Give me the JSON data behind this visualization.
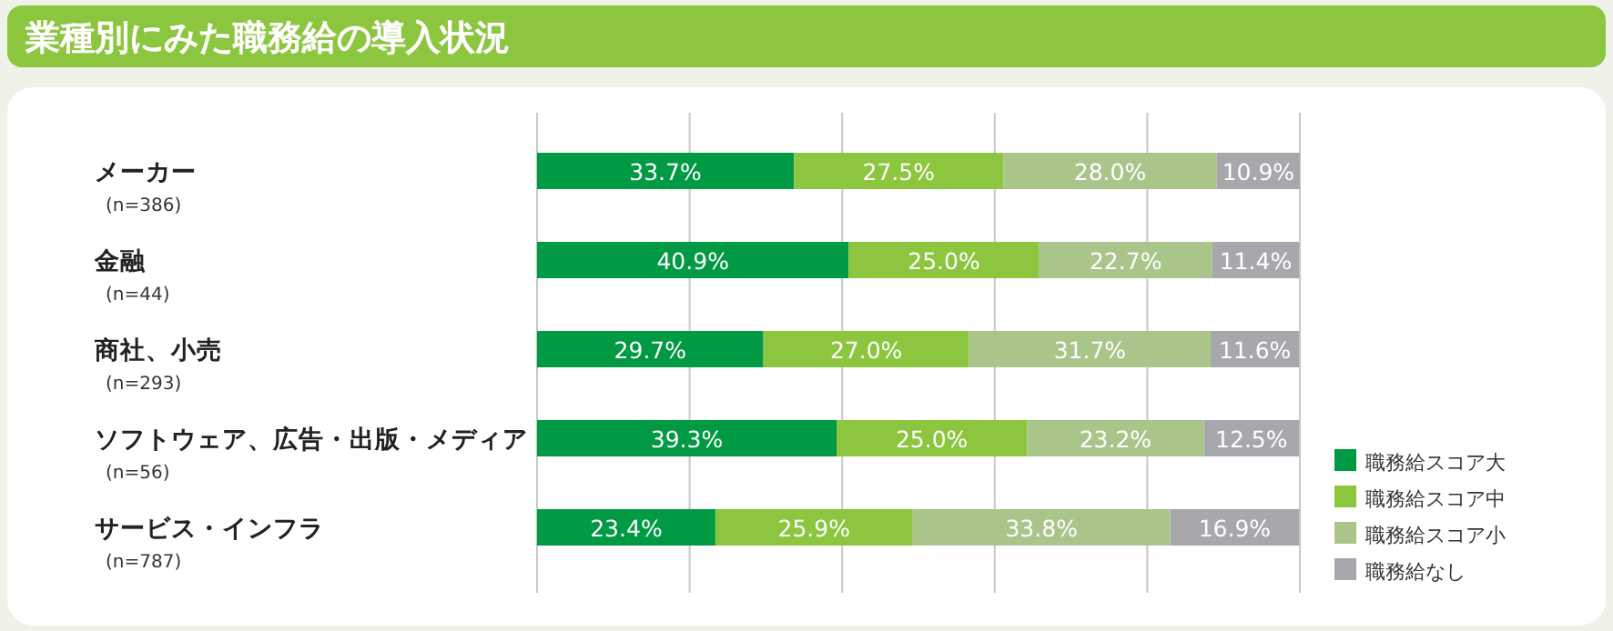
{
  "chart_data": {
    "type": "bar",
    "orientation": "horizontal",
    "stacked": true,
    "title": "業種別にみた職務給の導入状況",
    "categories": [
      "メーカー\n(n=386)",
      "金融\n(n=44)",
      "商社、小売\n(n=293)",
      "ソフトウェア、広告・出版・メディア\n(n=56)",
      "サービス・インフラ\n(n=787)"
    ],
    "series": [
      {
        "name": "職務給スコア大",
        "color": "#009944",
        "values": [
          33.7,
          40.9,
          29.7,
          39.3,
          23.4
        ],
        "value_labels": [
          "33.7%",
          "40.9%",
          "29.7%",
          "39.3%",
          "23.4%"
        ]
      },
      {
        "name": "職務給スコア中",
        "color": "#8cc63f",
        "values": [
          27.5,
          25.0,
          27.0,
          25.0,
          25.9
        ],
        "value_labels": [
          "27.5%",
          "25.0%",
          "27.0%",
          "25.0%",
          "25.9%"
        ]
      },
      {
        "name": "職務給スコア小",
        "color": "#a9c58a",
        "values": [
          28.0,
          22.7,
          31.7,
          23.2,
          33.8
        ],
        "value_labels": [
          "28.0%",
          "22.7%",
          "31.7%",
          "23.2%",
          "33.8%"
        ]
      },
      {
        "name": "職務給なし",
        "color": "#a6a8ab",
        "values": [
          10.9,
          11.4,
          11.6,
          12.5,
          16.9
        ],
        "value_labels": [
          "10.9%",
          "11.4%",
          "11.6%",
          "12.5%",
          "16.9%"
        ]
      }
    ],
    "grid": "x",
    "legend": "bottom right"
  }
}
